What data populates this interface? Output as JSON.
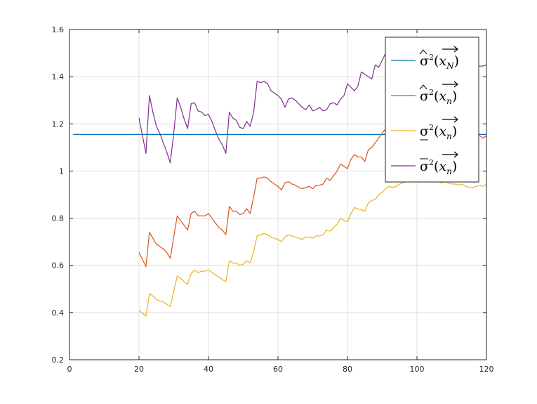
{
  "chart_data": {
    "type": "line",
    "xlim": [
      0,
      120
    ],
    "ylim": [
      0.2,
      1.6
    ],
    "xticks": [
      0,
      20,
      40,
      60,
      80,
      100,
      120
    ],
    "yticks": [
      0.2,
      0.4,
      0.6,
      0.8,
      1,
      1.2,
      1.4,
      1.6
    ],
    "grid": true,
    "legend_position": "top-right",
    "series": [
      {
        "name": "σ̂²(x→N)",
        "color": "#0072BD",
        "x": [
          1,
          120
        ],
        "y": [
          1.155,
          1.155
        ]
      },
      {
        "name": "σ̂²(x→n)",
        "color": "#D95319",
        "x": [
          20,
          22,
          23,
          24,
          25,
          26,
          27,
          28,
          29,
          30,
          31,
          32,
          33,
          34,
          35,
          36,
          37,
          38,
          39,
          40,
          41,
          42,
          43,
          44,
          45,
          46,
          47,
          48,
          49,
          50,
          51,
          52,
          53,
          54,
          55,
          56,
          57,
          58,
          59,
          60,
          61,
          62,
          63,
          64,
          65,
          66,
          67,
          68,
          69,
          70,
          71,
          72,
          73,
          74,
          75,
          76,
          77,
          78,
          79,
          80,
          81,
          82,
          83,
          84,
          85,
          86,
          87,
          88,
          89,
          90,
          91,
          92,
          93,
          94,
          95,
          96,
          97,
          98,
          99,
          100,
          101,
          102,
          103,
          104,
          105,
          106,
          107,
          108,
          109,
          110,
          111,
          112,
          113,
          114,
          115,
          116,
          117,
          118,
          119,
          120
        ],
        "y": [
          0.655,
          0.595,
          0.74,
          0.715,
          0.69,
          0.68,
          0.67,
          0.655,
          0.63,
          0.72,
          0.81,
          0.79,
          0.77,
          0.75,
          0.82,
          0.83,
          0.81,
          0.81,
          0.81,
          0.82,
          0.8,
          0.78,
          0.76,
          0.75,
          0.73,
          0.85,
          0.83,
          0.83,
          0.815,
          0.82,
          0.84,
          0.82,
          0.89,
          0.97,
          0.97,
          0.975,
          0.97,
          0.955,
          0.945,
          0.935,
          0.92,
          0.95,
          0.955,
          0.945,
          0.94,
          0.93,
          0.925,
          0.93,
          0.935,
          0.925,
          0.94,
          0.94,
          0.945,
          0.97,
          0.96,
          0.98,
          1.0,
          1.03,
          1.02,
          1.01,
          1.05,
          1.07,
          1.06,
          1.06,
          1.04,
          1.09,
          1.1,
          1.12,
          1.14,
          1.16,
          1.18,
          1.21,
          1.23,
          1.22,
          1.21,
          1.2,
          1.2,
          1.19,
          1.18,
          1.18,
          1.17,
          1.17,
          1.16,
          1.16,
          1.15,
          1.15,
          1.145,
          1.15,
          1.14,
          1.145,
          1.15,
          1.14,
          1.14,
          1.145,
          1.135,
          1.14,
          1.145,
          1.15,
          1.14,
          1.15
        ]
      },
      {
        "name": "σ̲²(x→n)",
        "color": "#EDB120",
        "x": [
          20,
          22,
          23,
          24,
          25,
          26,
          27,
          28,
          29,
          30,
          31,
          32,
          33,
          34,
          35,
          36,
          37,
          38,
          39,
          40,
          41,
          42,
          43,
          44,
          45,
          46,
          47,
          48,
          49,
          50,
          51,
          52,
          53,
          54,
          55,
          56,
          57,
          58,
          59,
          60,
          61,
          62,
          63,
          64,
          65,
          66,
          67,
          68,
          69,
          70,
          71,
          72,
          73,
          74,
          75,
          76,
          77,
          78,
          79,
          80,
          81,
          82,
          83,
          84,
          85,
          86,
          87,
          88,
          89,
          90,
          91,
          92,
          93,
          94,
          95,
          96,
          97,
          98,
          99,
          100,
          101,
          102,
          103,
          104,
          105,
          106,
          107,
          108,
          109,
          110,
          111,
          112,
          113,
          114,
          115,
          116,
          117,
          118,
          119,
          120
        ],
        "y": [
          0.41,
          0.385,
          0.48,
          0.47,
          0.455,
          0.45,
          0.445,
          0.435,
          0.425,
          0.49,
          0.555,
          0.545,
          0.53,
          0.52,
          0.565,
          0.58,
          0.57,
          0.575,
          0.575,
          0.58,
          0.57,
          0.56,
          0.55,
          0.54,
          0.53,
          0.62,
          0.61,
          0.61,
          0.6,
          0.605,
          0.62,
          0.61,
          0.66,
          0.725,
          0.73,
          0.735,
          0.73,
          0.72,
          0.715,
          0.71,
          0.7,
          0.72,
          0.73,
          0.725,
          0.72,
          0.715,
          0.71,
          0.72,
          0.72,
          0.715,
          0.725,
          0.725,
          0.73,
          0.75,
          0.745,
          0.76,
          0.775,
          0.8,
          0.79,
          0.785,
          0.82,
          0.845,
          0.84,
          0.835,
          0.83,
          0.865,
          0.875,
          0.88,
          0.9,
          0.91,
          0.925,
          0.935,
          0.93,
          0.935,
          0.945,
          0.95,
          0.955,
          0.96,
          0.96,
          0.955,
          0.955,
          0.96,
          0.965,
          0.96,
          0.96,
          0.955,
          0.95,
          0.955,
          0.95,
          0.945,
          0.945,
          0.94,
          0.945,
          0.935,
          0.93,
          0.93,
          0.935,
          0.94,
          0.935,
          0.945
        ]
      },
      {
        "name": "σ̄²(x→n)",
        "color": "#7E2F8E",
        "x": [
          20,
          22,
          23,
          24,
          25,
          26,
          27,
          28,
          29,
          30,
          31,
          32,
          33,
          34,
          35,
          36,
          37,
          38,
          39,
          40,
          41,
          42,
          43,
          44,
          45,
          46,
          47,
          48,
          49,
          50,
          51,
          52,
          53,
          54,
          55,
          56,
          57,
          58,
          59,
          60,
          61,
          62,
          63,
          64,
          65,
          66,
          67,
          68,
          69,
          70,
          71,
          72,
          73,
          74,
          75,
          76,
          77,
          78,
          79,
          80,
          81,
          82,
          83,
          84,
          85,
          86,
          87,
          88,
          89,
          90,
          91,
          92,
          93,
          94,
          95,
          96,
          97,
          98,
          99,
          100,
          101,
          102,
          103,
          104,
          105,
          106,
          107,
          108,
          109,
          110,
          111,
          112,
          113,
          114,
          115,
          116,
          117,
          118,
          119,
          120
        ],
        "y": [
          1.225,
          1.075,
          1.32,
          1.25,
          1.19,
          1.16,
          1.12,
          1.08,
          1.035,
          1.16,
          1.31,
          1.27,
          1.22,
          1.18,
          1.285,
          1.29,
          1.255,
          1.25,
          1.235,
          1.24,
          1.21,
          1.17,
          1.135,
          1.11,
          1.075,
          1.25,
          1.225,
          1.215,
          1.185,
          1.18,
          1.21,
          1.19,
          1.25,
          1.38,
          1.375,
          1.38,
          1.37,
          1.34,
          1.33,
          1.32,
          1.305,
          1.27,
          1.305,
          1.31,
          1.3,
          1.285,
          1.27,
          1.26,
          1.28,
          1.255,
          1.26,
          1.27,
          1.255,
          1.26,
          1.285,
          1.29,
          1.28,
          1.305,
          1.32,
          1.37,
          1.355,
          1.34,
          1.36,
          1.42,
          1.41,
          1.4,
          1.39,
          1.45,
          1.44,
          1.47,
          1.5,
          1.52,
          1.51,
          1.515,
          1.505,
          1.5,
          1.495,
          1.49,
          1.485,
          1.48,
          1.48,
          1.475,
          1.47,
          1.475,
          1.47,
          1.465,
          1.465,
          1.46,
          1.46,
          1.455,
          1.455,
          1.45,
          1.455,
          1.45,
          1.445,
          1.45,
          1.44,
          1.445,
          1.445,
          1.45
        ]
      }
    ]
  }
}
